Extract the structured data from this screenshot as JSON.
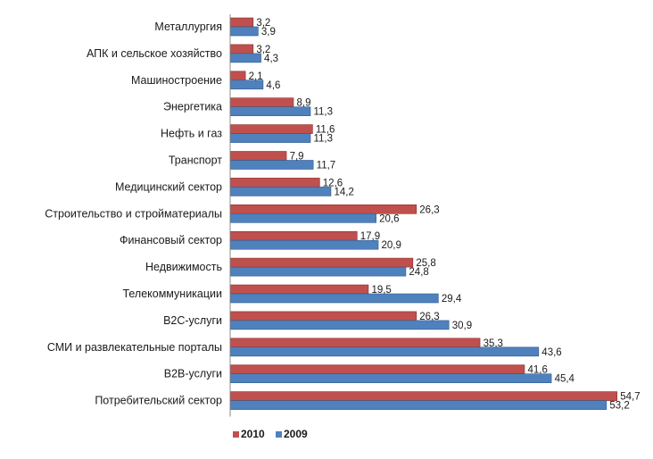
{
  "chart_data": {
    "type": "bar",
    "orientation": "horizontal",
    "categories": [
      "Металлургия",
      "АПК и сельское хозяйство",
      "Машиностроение",
      "Энергетика",
      "Нефть и газ",
      "Транспорт",
      "Медицинский сектор",
      "Строительство и стройматериалы",
      "Финансовый сектор",
      "Недвижимость",
      "Телекоммуникации",
      "B2C-услуги",
      "СМИ и развлекательные порталы",
      "B2B-услуги",
      "Потребительский сектор"
    ],
    "series": [
      {
        "name": "2010",
        "color": "#c0504d",
        "values": [
          3.2,
          3.2,
          2.1,
          8.9,
          11.6,
          7.9,
          12.6,
          26.3,
          17.9,
          25.8,
          19.5,
          26.3,
          35.3,
          41.6,
          54.7
        ],
        "labels": [
          "3,2",
          "3,2",
          "2,1",
          "8,9",
          "11,6",
          "7,9",
          "12,6",
          "26,3",
          "17,9",
          "25,8",
          "19,5",
          "26,3",
          "35,3",
          "41,6",
          "54,7"
        ]
      },
      {
        "name": "2009",
        "color": "#4f81bd",
        "values": [
          3.9,
          4.3,
          4.6,
          11.3,
          11.3,
          11.7,
          14.2,
          20.6,
          20.9,
          24.8,
          29.4,
          30.9,
          43.6,
          45.4,
          53.2
        ],
        "labels": [
          "3,9",
          "4,3",
          "4,6",
          "11,3",
          "11,3",
          "11,7",
          "14,2",
          "20,6",
          "20,9",
          "24,8",
          "29,4",
          "30,9",
          "43,6",
          "45,4",
          "53,2"
        ]
      }
    ],
    "xlim": [
      0,
      55
    ],
    "grid": false,
    "legend": "bottom-left"
  }
}
